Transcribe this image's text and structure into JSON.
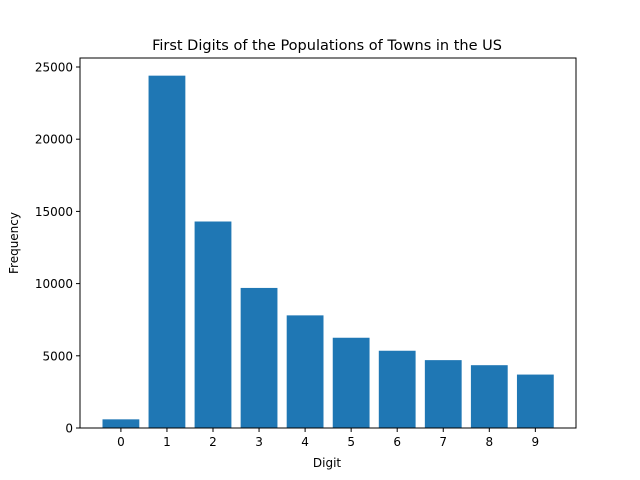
{
  "chart_data": {
    "type": "bar",
    "title": "First Digits of the Populations of Towns in the US",
    "xlabel": "Digit",
    "ylabel": "Frequency",
    "categories": [
      "0",
      "1",
      "2",
      "3",
      "4",
      "5",
      "6",
      "7",
      "8",
      "9"
    ],
    "values": [
      600,
      24400,
      14300,
      9700,
      7800,
      6250,
      5350,
      4700,
      4350,
      3700
    ],
    "ylim": [
      0,
      25000
    ],
    "yticks": [
      "0",
      "5000",
      "10000",
      "15000",
      "20000",
      "25000"
    ],
    "color": "#1f77b4",
    "grid": false,
    "legend": "none"
  }
}
